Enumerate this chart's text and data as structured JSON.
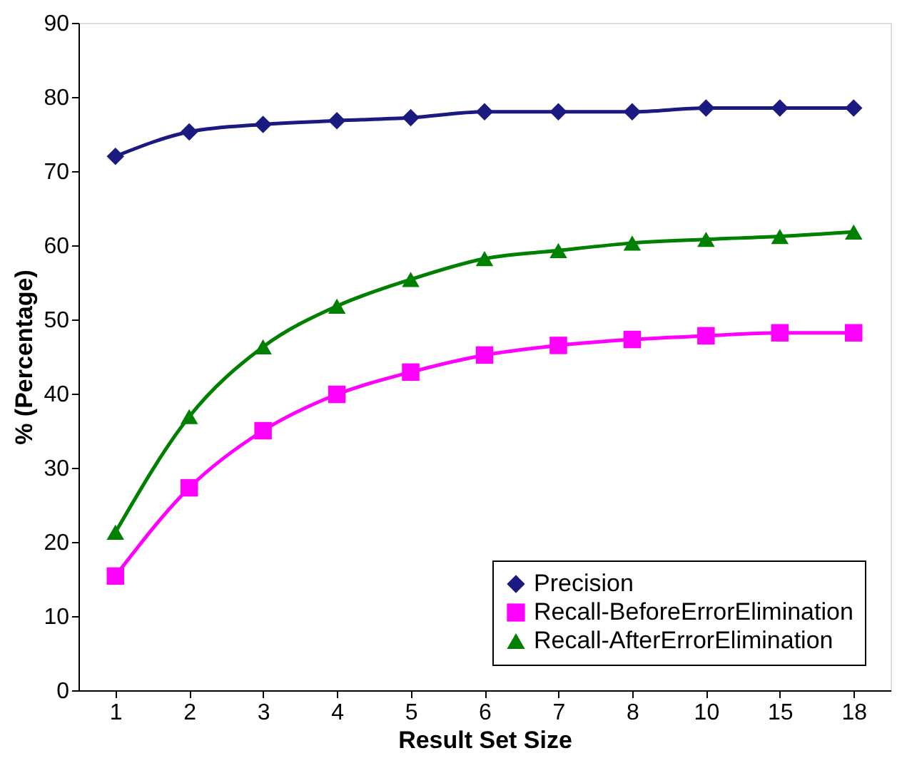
{
  "chart_data": {
    "type": "line",
    "xlabel": "Result Set Size",
    "ylabel": "% (Percentage)",
    "categories": [
      "1",
      "2",
      "3",
      "4",
      "5",
      "6",
      "7",
      "8",
      "10",
      "15",
      "18"
    ],
    "ylim": [
      0,
      90
    ],
    "yticks": [
      0,
      10,
      20,
      30,
      40,
      50,
      60,
      70,
      80,
      90
    ],
    "grid": false,
    "legend": "bottom right",
    "line_style": "solid",
    "series": [
      {
        "name": "Precision",
        "color": "#1a1a80",
        "marker": "diamond",
        "values": [
          72,
          75.3,
          76.3,
          76.8,
          77.2,
          78,
          78,
          78,
          78.5,
          78.5,
          78.5
        ]
      },
      {
        "name": "Recall-BeforeErrorElimination",
        "color": "#ff00ff",
        "marker": "square",
        "values": [
          15.4,
          27.3,
          35,
          39.9,
          42.9,
          45.2,
          46.5,
          47.3,
          47.8,
          48.2,
          48.2
        ]
      },
      {
        "name": "Recall-AfterErrorElimination",
        "color": "#008000",
        "marker": "triangle",
        "values": [
          21.3,
          36.9,
          46.3,
          51.8,
          55.4,
          58.2,
          59.3,
          60.3,
          60.8,
          61.2,
          61.8
        ]
      }
    ]
  }
}
